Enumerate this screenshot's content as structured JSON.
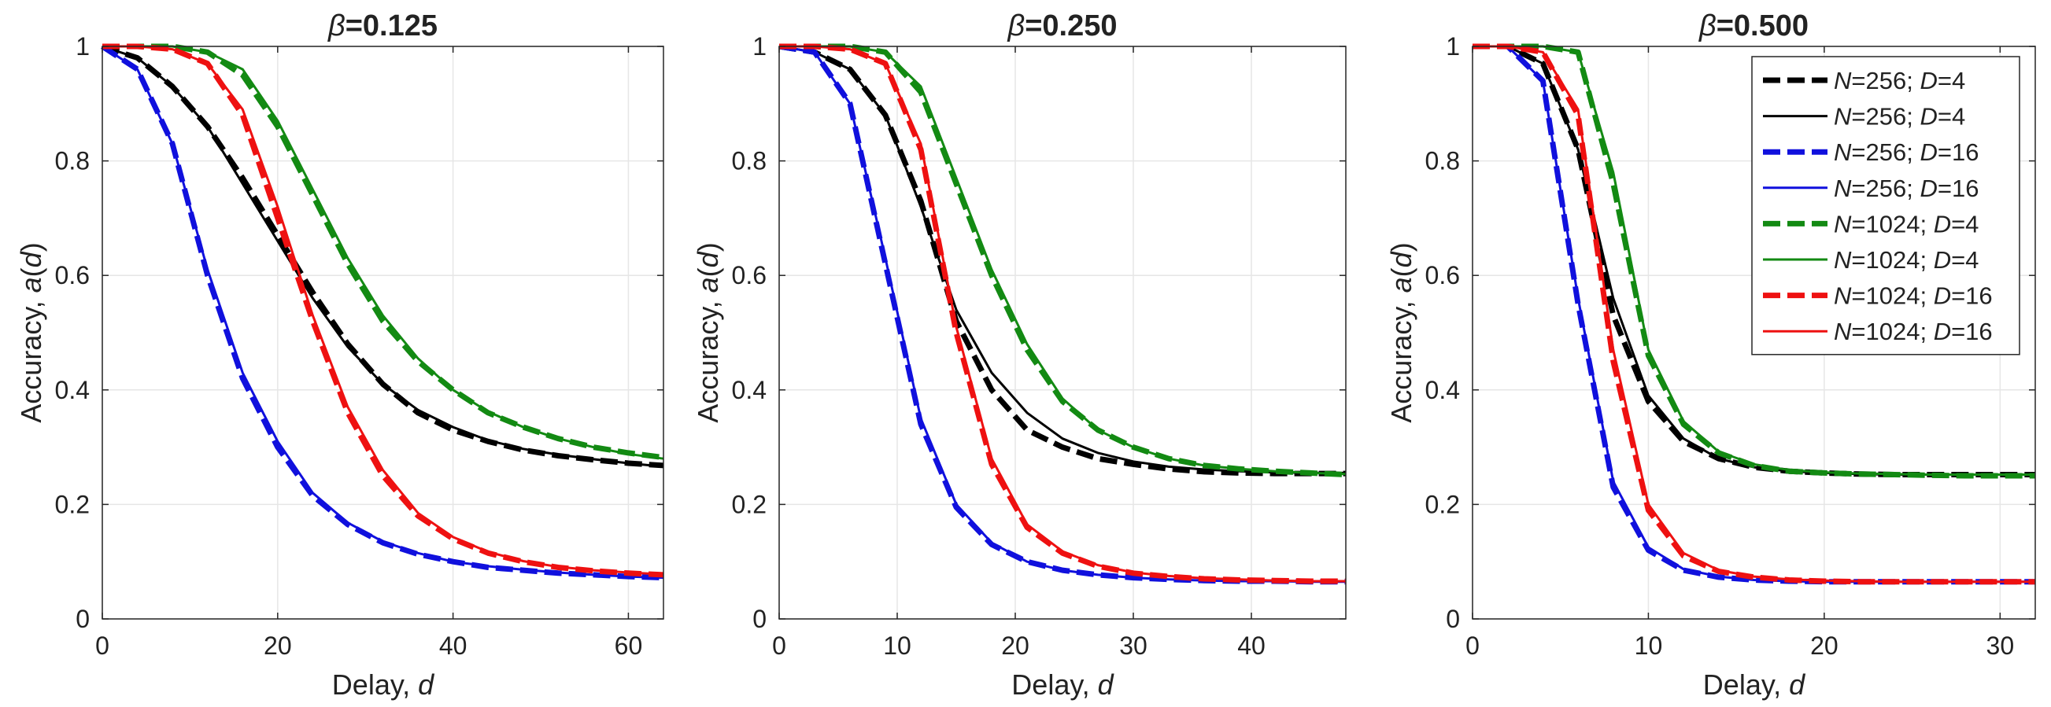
{
  "chart_data": [
    {
      "type": "line",
      "title": "β=0.125",
      "xlabel": "Delay, d",
      "ylabel": "Accuracy, a(d)",
      "xlim": [
        0,
        64
      ],
      "ylim": [
        0,
        1
      ],
      "xticks": [
        0,
        20,
        40,
        60
      ],
      "yticks": [
        0,
        0.2,
        0.4,
        0.6,
        0.8,
        1
      ],
      "grid": true,
      "x": [
        0,
        4,
        8,
        12,
        16,
        20,
        24,
        28,
        32,
        36,
        40,
        44,
        48,
        52,
        56,
        60,
        64
      ],
      "series": [
        {
          "name": "N=256; D=4",
          "style": "dashed",
          "color": "#000000",
          "values": [
            1.0,
            0.98,
            0.93,
            0.86,
            0.77,
            0.67,
            0.57,
            0.48,
            0.41,
            0.36,
            0.33,
            0.31,
            0.295,
            0.285,
            0.278,
            0.272,
            0.268
          ]
        },
        {
          "name": "N=256; D=4",
          "style": "solid",
          "color": "#000000",
          "values": [
            1.0,
            0.98,
            0.93,
            0.86,
            0.76,
            0.66,
            0.56,
            0.475,
            0.41,
            0.365,
            0.335,
            0.312,
            0.297,
            0.287,
            0.279,
            0.272,
            0.266
          ]
        },
        {
          "name": "N=256; D=16",
          "style": "dashed",
          "color": "#1010dd",
          "values": [
            1.0,
            0.96,
            0.83,
            0.6,
            0.42,
            0.3,
            0.215,
            0.165,
            0.133,
            0.113,
            0.1,
            0.09,
            0.085,
            0.08,
            0.077,
            0.074,
            0.072
          ]
        },
        {
          "name": "N=256; D=16",
          "style": "solid",
          "color": "#1010dd",
          "values": [
            1.0,
            0.96,
            0.83,
            0.61,
            0.43,
            0.31,
            0.22,
            0.168,
            0.135,
            0.115,
            0.1,
            0.092,
            0.086,
            0.081,
            0.077,
            0.074,
            0.072
          ]
        },
        {
          "name": "N=1024; D=4",
          "style": "dashed",
          "color": "#138a13",
          "values": [
            1.0,
            1.0,
            1.0,
            0.99,
            0.95,
            0.86,
            0.74,
            0.62,
            0.52,
            0.45,
            0.4,
            0.36,
            0.335,
            0.315,
            0.3,
            0.29,
            0.282
          ]
        },
        {
          "name": "N=1024; D=4",
          "style": "solid",
          "color": "#138a13",
          "values": [
            1.0,
            1.0,
            1.0,
            0.99,
            0.96,
            0.87,
            0.75,
            0.63,
            0.53,
            0.455,
            0.4,
            0.362,
            0.335,
            0.315,
            0.3,
            0.288,
            0.28
          ]
        },
        {
          "name": "N=1024; D=16",
          "style": "dashed",
          "color": "#ee1111",
          "values": [
            1.0,
            1.0,
            0.995,
            0.97,
            0.88,
            0.7,
            0.52,
            0.36,
            0.25,
            0.18,
            0.14,
            0.115,
            0.1,
            0.09,
            0.084,
            0.08,
            0.077
          ]
        },
        {
          "name": "N=1024; D=16",
          "style": "solid",
          "color": "#ee1111",
          "values": [
            1.0,
            1.0,
            0.995,
            0.97,
            0.89,
            0.72,
            0.53,
            0.37,
            0.26,
            0.185,
            0.143,
            0.117,
            0.101,
            0.091,
            0.085,
            0.081,
            0.078
          ]
        }
      ]
    },
    {
      "type": "line",
      "title": "β=0.250",
      "xlabel": "Delay, d",
      "ylabel": "Accuracy, a(d)",
      "xlim": [
        0,
        48
      ],
      "ylim": [
        0,
        1
      ],
      "xticks": [
        0,
        10,
        20,
        30,
        40
      ],
      "yticks": [
        0,
        0.2,
        0.4,
        0.6,
        0.8,
        1
      ],
      "grid": true,
      "x": [
        0,
        3,
        6,
        9,
        12,
        15,
        18,
        21,
        24,
        27,
        30,
        33,
        36,
        39,
        42,
        45,
        48
      ],
      "series": [
        {
          "name": "N=256; D=4",
          "style": "dashed",
          "color": "#000000",
          "values": [
            1.0,
            0.99,
            0.96,
            0.88,
            0.73,
            0.52,
            0.4,
            0.33,
            0.3,
            0.28,
            0.27,
            0.262,
            0.257,
            0.255,
            0.254,
            0.254,
            0.254
          ]
        },
        {
          "name": "N=256; D=4",
          "style": "solid",
          "color": "#000000",
          "values": [
            1.0,
            0.99,
            0.96,
            0.88,
            0.72,
            0.54,
            0.43,
            0.36,
            0.315,
            0.29,
            0.275,
            0.266,
            0.261,
            0.258,
            0.256,
            0.255,
            0.255
          ]
        },
        {
          "name": "N=256; D=16",
          "style": "dashed",
          "color": "#1010dd",
          "values": [
            1.0,
            0.99,
            0.9,
            0.62,
            0.34,
            0.195,
            0.13,
            0.1,
            0.085,
            0.077,
            0.072,
            0.069,
            0.067,
            0.066,
            0.066,
            0.065,
            0.065
          ]
        },
        {
          "name": "N=256; D=16",
          "style": "solid",
          "color": "#1010dd",
          "values": [
            1.0,
            0.99,
            0.9,
            0.63,
            0.35,
            0.2,
            0.133,
            0.1,
            0.085,
            0.077,
            0.072,
            0.069,
            0.067,
            0.066,
            0.066,
            0.065,
            0.065
          ]
        },
        {
          "name": "N=1024; D=4",
          "style": "dashed",
          "color": "#138a13",
          "values": [
            1.0,
            1.0,
            1.0,
            0.99,
            0.92,
            0.76,
            0.6,
            0.47,
            0.38,
            0.33,
            0.3,
            0.28,
            0.268,
            0.262,
            0.258,
            0.255,
            0.252
          ]
        },
        {
          "name": "N=1024; D=4",
          "style": "solid",
          "color": "#138a13",
          "values": [
            1.0,
            1.0,
            1.0,
            0.99,
            0.93,
            0.77,
            0.61,
            0.48,
            0.385,
            0.33,
            0.3,
            0.28,
            0.268,
            0.262,
            0.258,
            0.255,
            0.253
          ]
        },
        {
          "name": "N=1024; D=16",
          "style": "dashed",
          "color": "#ee1111",
          "values": [
            1.0,
            1.0,
            0.995,
            0.97,
            0.82,
            0.5,
            0.27,
            0.16,
            0.115,
            0.092,
            0.08,
            0.074,
            0.07,
            0.068,
            0.067,
            0.066,
            0.066
          ]
        },
        {
          "name": "N=1024; D=16",
          "style": "solid",
          "color": "#ee1111",
          "values": [
            1.0,
            1.0,
            0.995,
            0.97,
            0.83,
            0.51,
            0.28,
            0.165,
            0.118,
            0.094,
            0.081,
            0.075,
            0.071,
            0.069,
            0.067,
            0.066,
            0.066
          ]
        }
      ]
    },
    {
      "type": "line",
      "title": "β=0.500",
      "xlabel": "Delay, d",
      "ylabel": "Accuracy, a(d)",
      "xlim": [
        0,
        32
      ],
      "ylim": [
        0,
        1
      ],
      "xticks": [
        0,
        10,
        20,
        30
      ],
      "yticks": [
        0,
        0.2,
        0.4,
        0.6,
        0.8,
        1
      ],
      "grid": true,
      "x": [
        0,
        2,
        4,
        6,
        8,
        10,
        12,
        14,
        16,
        18,
        20,
        22,
        24,
        26,
        28,
        30,
        32
      ],
      "series": [
        {
          "name": "N=256; D=4",
          "style": "dashed",
          "color": "#000000",
          "values": [
            1.0,
            1.0,
            0.97,
            0.82,
            0.53,
            0.38,
            0.31,
            0.28,
            0.265,
            0.258,
            0.255,
            0.253,
            0.252,
            0.252,
            0.252,
            0.252,
            0.252
          ]
        },
        {
          "name": "N=256; D=4",
          "style": "solid",
          "color": "#000000",
          "values": [
            1.0,
            1.0,
            0.97,
            0.82,
            0.56,
            0.39,
            0.315,
            0.28,
            0.265,
            0.258,
            0.255,
            0.253,
            0.252,
            0.252,
            0.252,
            0.252,
            0.252
          ]
        },
        {
          "name": "N=256; D=16",
          "style": "dashed",
          "color": "#1010dd",
          "values": [
            1.0,
            1.0,
            0.94,
            0.55,
            0.23,
            0.12,
            0.085,
            0.073,
            0.068,
            0.066,
            0.065,
            0.065,
            0.065,
            0.065,
            0.065,
            0.065,
            0.065
          ]
        },
        {
          "name": "N=256; D=16",
          "style": "solid",
          "color": "#1010dd",
          "values": [
            1.0,
            1.0,
            0.94,
            0.56,
            0.24,
            0.125,
            0.087,
            0.074,
            0.068,
            0.066,
            0.065,
            0.065,
            0.065,
            0.065,
            0.065,
            0.065,
            0.065
          ]
        },
        {
          "name": "N=1024; D=4",
          "style": "dashed",
          "color": "#138a13",
          "values": [
            1.0,
            1.0,
            1.0,
            0.99,
            0.76,
            0.46,
            0.34,
            0.29,
            0.268,
            0.258,
            0.255,
            0.253,
            0.252,
            0.251,
            0.25,
            0.25,
            0.25
          ]
        },
        {
          "name": "N=1024; D=4",
          "style": "solid",
          "color": "#138a13",
          "values": [
            1.0,
            1.0,
            1.0,
            0.99,
            0.78,
            0.47,
            0.345,
            0.292,
            0.27,
            0.26,
            0.256,
            0.254,
            0.253,
            0.252,
            0.252,
            0.252,
            0.252
          ]
        },
        {
          "name": "N=1024; D=16",
          "style": "dashed",
          "color": "#ee1111",
          "values": [
            1.0,
            1.0,
            0.99,
            0.88,
            0.45,
            0.19,
            0.11,
            0.083,
            0.073,
            0.068,
            0.066,
            0.065,
            0.065,
            0.065,
            0.065,
            0.065,
            0.065
          ]
        },
        {
          "name": "N=1024; D=16",
          "style": "solid",
          "color": "#ee1111",
          "values": [
            1.0,
            1.0,
            0.99,
            0.89,
            0.47,
            0.2,
            0.115,
            0.085,
            0.074,
            0.069,
            0.067,
            0.066,
            0.065,
            0.065,
            0.065,
            0.065,
            0.065
          ]
        }
      ]
    }
  ],
  "legend": {
    "placement": "top-right",
    "entries": [
      {
        "n": "N",
        "nval": "=256; ",
        "d": "D",
        "dval": "=4",
        "color": "#000000",
        "style": "dashed"
      },
      {
        "n": "N",
        "nval": "=256; ",
        "d": "D",
        "dval": "=4",
        "color": "#000000",
        "style": "solid"
      },
      {
        "n": "N",
        "nval": "=256; ",
        "d": "D",
        "dval": "=16",
        "color": "#1010dd",
        "style": "dashed"
      },
      {
        "n": "N",
        "nval": "=256; ",
        "d": "D",
        "dval": "=16",
        "color": "#1010dd",
        "style": "solid"
      },
      {
        "n": "N",
        "nval": "=1024; ",
        "d": "D",
        "dval": "=4",
        "color": "#138a13",
        "style": "dashed"
      },
      {
        "n": "N",
        "nval": "=1024; ",
        "d": "D",
        "dval": "=4",
        "color": "#138a13",
        "style": "solid"
      },
      {
        "n": "N",
        "nval": "=1024; ",
        "d": "D",
        "dval": "=16",
        "color": "#ee1111",
        "style": "dashed"
      },
      {
        "n": "N",
        "nval": "=1024; ",
        "d": "D",
        "dval": "=16",
        "color": "#ee1111",
        "style": "solid"
      }
    ]
  },
  "labels": {
    "title_beta": "β",
    "xlabel_text": "Delay, ",
    "xlabel_var": "d",
    "ylabel_text": "Accuracy, ",
    "ylabel_var": "a",
    "ylabel_paren_open": "(",
    "ylabel_paren_var": "d",
    "ylabel_paren_close": ")"
  }
}
